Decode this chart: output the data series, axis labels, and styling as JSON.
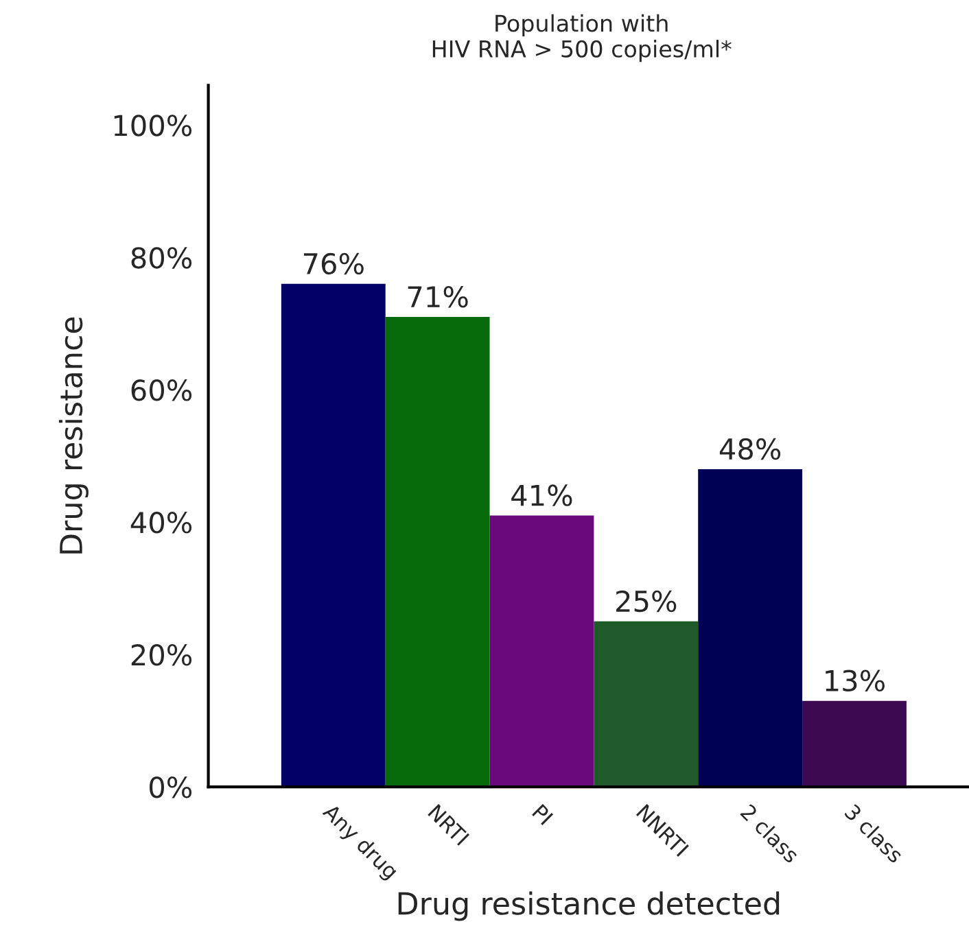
{
  "chart_data": {
    "type": "bar",
    "title": "Population with\nHIV RNA > 500 copies/ml*",
    "xlabel": "Drug resistance detected",
    "ylabel": "Drug resistance",
    "categories": [
      "Any drug",
      "NRTI",
      "PI",
      "NNRTI",
      "2 class",
      "3 class"
    ],
    "values": [
      76,
      71,
      41,
      25,
      48,
      13
    ],
    "colors": [
      "#000066",
      "#076a0b",
      "#6a0a7a",
      "#1f5a2a",
      "#000055",
      "#3d0a52"
    ],
    "ylim": [
      0,
      106
    ],
    "yticks": [
      {
        "value": 0,
        "label": "0%"
      },
      {
        "value": 20,
        "label": "20%"
      },
      {
        "value": 40,
        "label": "40%"
      },
      {
        "value": 60,
        "label": "60%"
      },
      {
        "value": 80,
        "label": "80%"
      },
      {
        "value": 100,
        "label": "100%"
      }
    ],
    "value_labels": [
      "76%",
      "71%",
      "41%",
      "25%",
      "48%",
      "13%"
    ],
    "grid": false,
    "legend": false
  }
}
